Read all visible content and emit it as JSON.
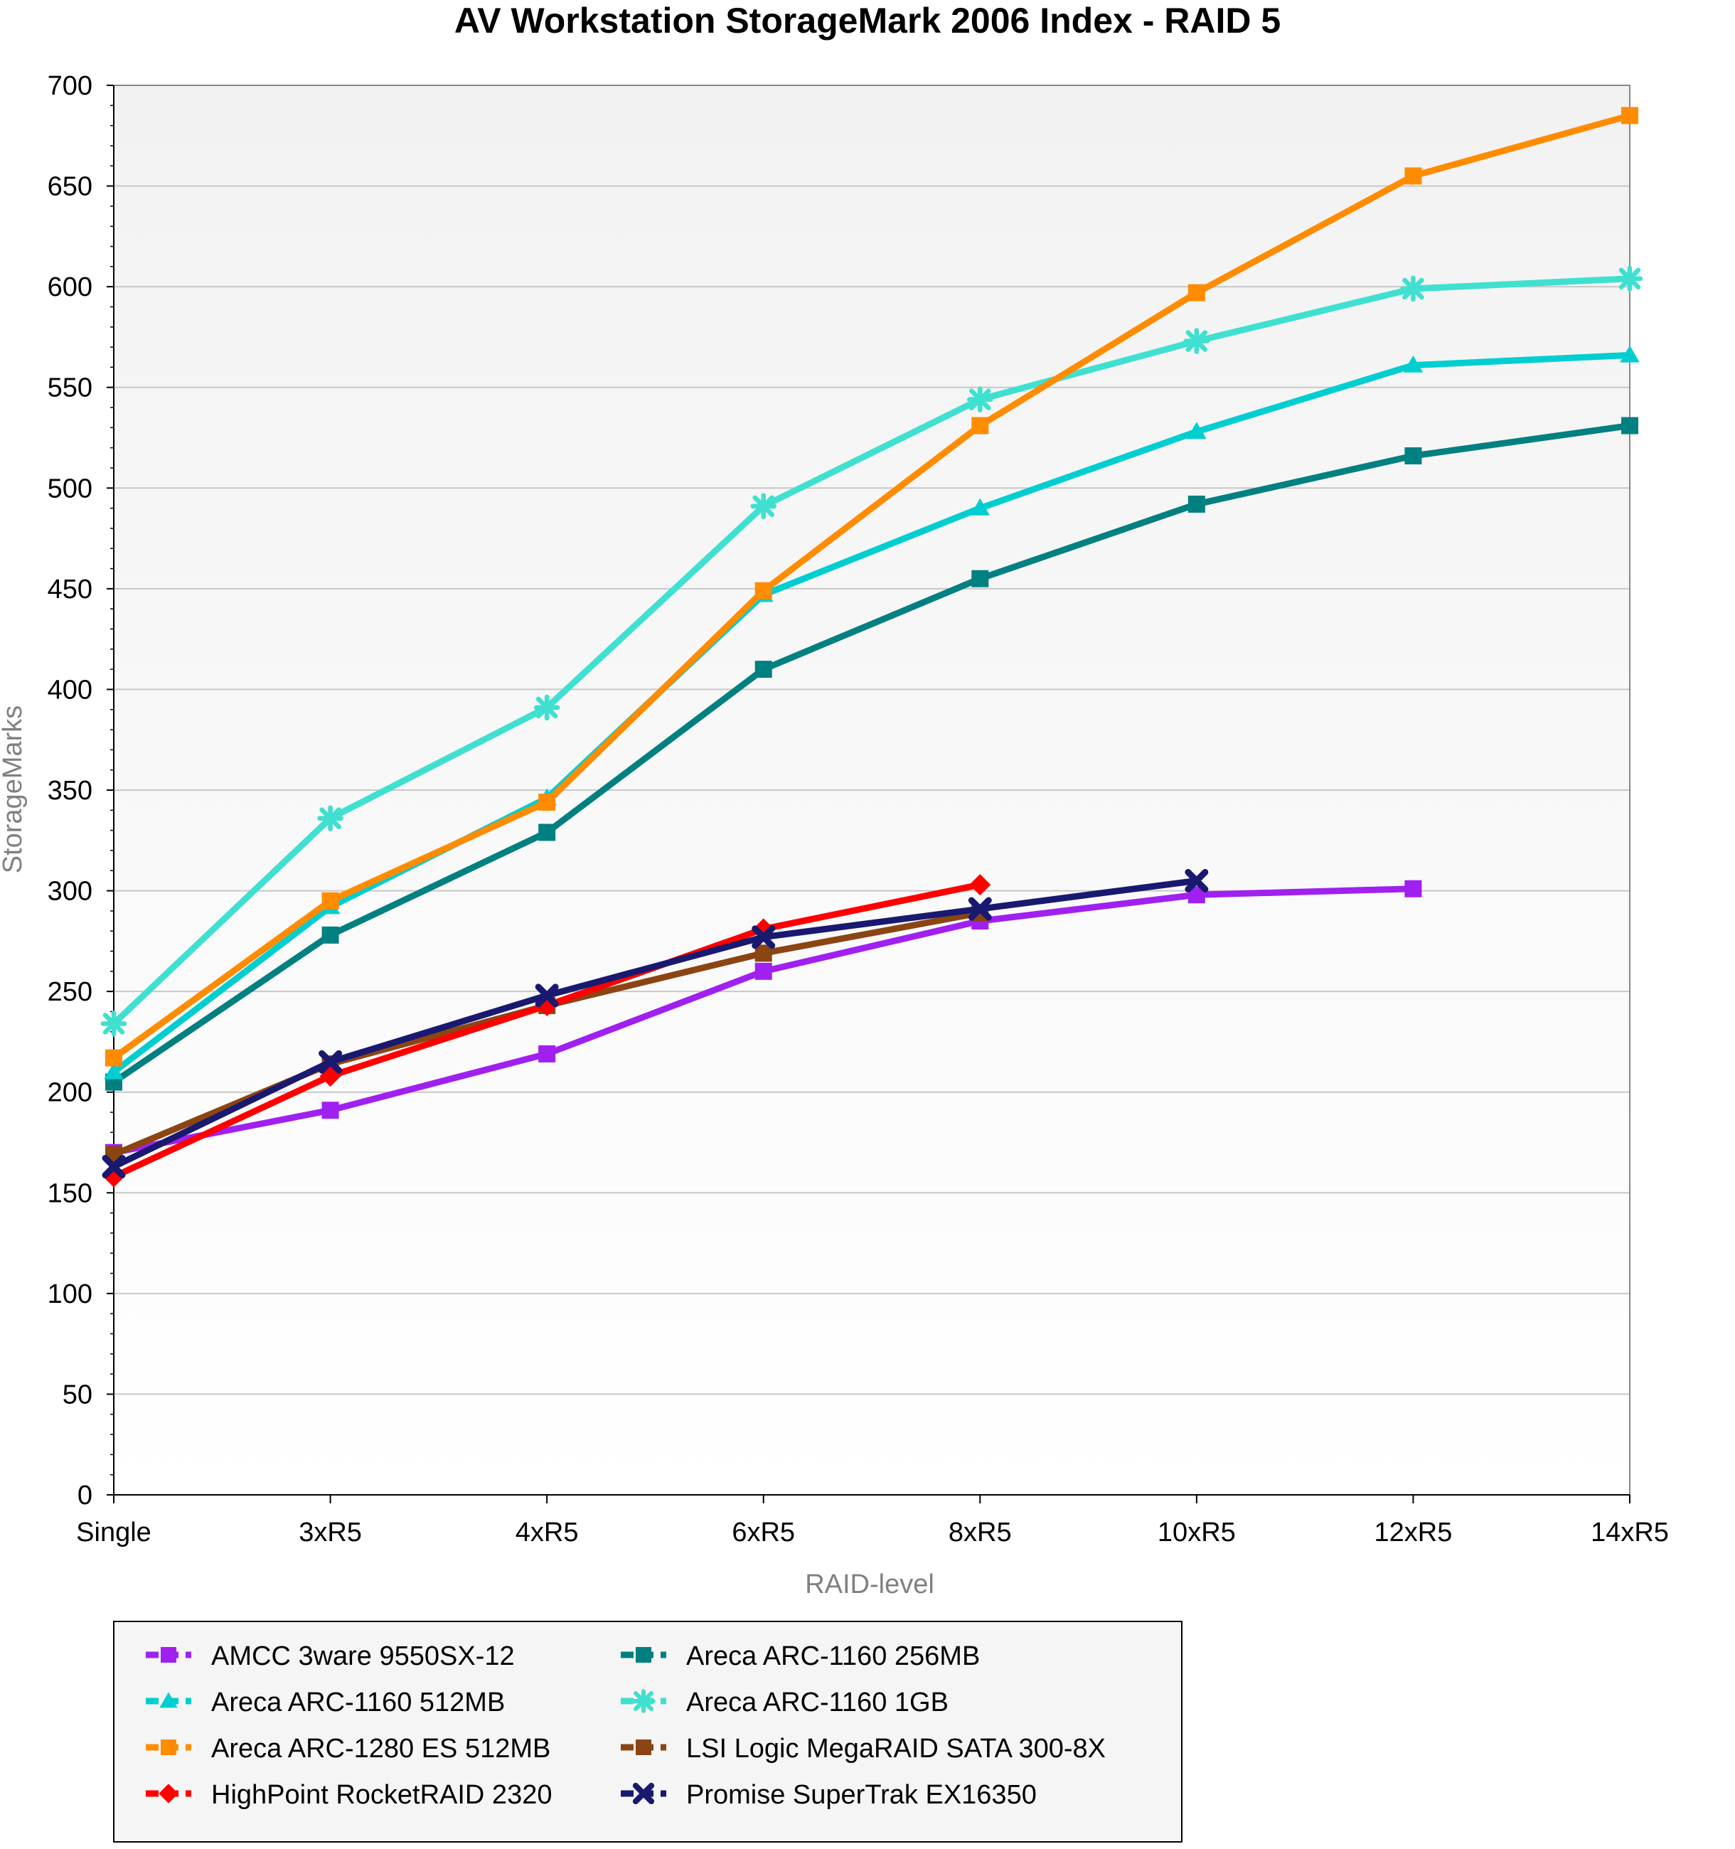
{
  "chart_data": {
    "type": "line",
    "title": "AV Workstation StorageMark 2006 Index - RAID 5",
    "xlabel": "RAID-level",
    "ylabel": "StorageMarks",
    "ylim": [
      0,
      700
    ],
    "ytick_step": 50,
    "categories": [
      "Single",
      "3xR5",
      "4xR5",
      "6xR5",
      "8xR5",
      "10xR5",
      "12xR5",
      "14xR5"
    ],
    "grid": "horizontal",
    "legend_position": "bottom",
    "series": [
      {
        "name": "AMCC 3ware 9550SX-12",
        "color": "#A020F0",
        "marker": "square",
        "values": [
          170,
          191,
          219,
          260,
          285,
          298,
          301,
          null
        ]
      },
      {
        "name": "Areca ARC-1160 256MB",
        "color": "#008080",
        "marker": "square",
        "values": [
          205,
          278,
          329,
          410,
          455,
          492,
          516,
          531
        ]
      },
      {
        "name": "Areca ARC-1160 512MB",
        "color": "#00CED1",
        "marker": "triangle",
        "values": [
          210,
          292,
          346,
          447,
          490,
          528,
          561,
          566
        ]
      },
      {
        "name": "Areca ARC-1160 1GB",
        "color": "#40E0D0",
        "marker": "asterisk",
        "values": [
          234,
          336,
          391,
          491,
          544,
          573,
          599,
          604
        ]
      },
      {
        "name": "Areca ARC-1280 ES 512MB",
        "color": "#FF8C00",
        "marker": "square",
        "values": [
          217,
          295,
          344,
          449,
          531,
          597,
          655,
          685
        ]
      },
      {
        "name": "LSI Logic MegaRAID SATA 300-8X",
        "color": "#8B4513",
        "marker": "square",
        "values": [
          169,
          214,
          243,
          269,
          289,
          null,
          null,
          null
        ]
      },
      {
        "name": "HighPoint RocketRAID 2320",
        "color": "#FF0000",
        "marker": "diamond",
        "values": [
          158,
          208,
          243,
          281,
          303,
          null,
          null,
          null
        ]
      },
      {
        "name": "Promise SuperTrak EX16350",
        "color": "#191970",
        "marker": "x",
        "values": [
          163,
          215,
          248,
          277,
          291,
          305,
          null,
          null
        ]
      }
    ],
    "legend_order": [
      "AMCC 3ware 9550SX-12",
      "Areca ARC-1160 256MB",
      "Areca ARC-1160 512MB",
      "Areca ARC-1160 1GB",
      "Areca ARC-1280 ES 512MB",
      "LSI Logic MegaRAID SATA 300-8X",
      "HighPoint RocketRAID 2320",
      "Promise SuperTrak EX16350"
    ]
  }
}
